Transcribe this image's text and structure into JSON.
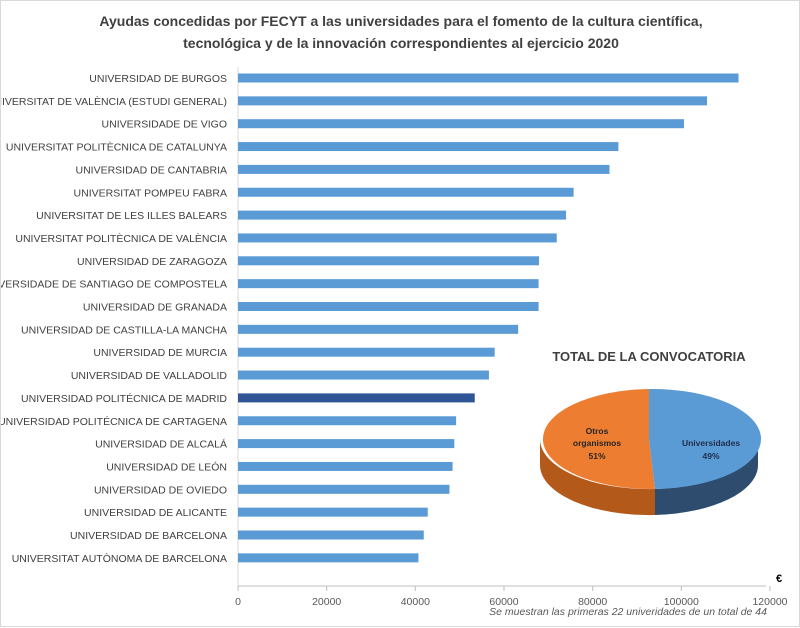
{
  "chart_data": [
    {
      "type": "bar",
      "orientation": "horizontal",
      "title": [
        "Ayudas concedidas por FECYT a las universidades para el fomento de la cultura científica,",
        "tecnológica y de la innovación  correspondientes al ejercicio 2020"
      ],
      "categories": [
        "UNIVERSIDAD DE BURGOS",
        "UNIVERSITAT DE VALÈNCIA (ESTUDI GENERAL)",
        "UNIVERSIDADE DE VIGO",
        "UNIVERSITAT POLITÈCNICA DE CATALUNYA",
        "UNIVERSIDAD DE CANTABRIA",
        "UNIVERSITAT POMPEU FABRA",
        "UNIVERSITAT DE LES ILLES BALEARS",
        "UNIVERSITAT POLITÈCNICA DE VALÈNCIA",
        "UNIVERSIDAD DE ZARAGOZA",
        "UNIVERSIDADE DE SANTIAGO DE COMPOSTELA",
        "UNIVERSIDAD DE GRANADA",
        "UNIVERSIDAD DE CASTILLA-LA MANCHA",
        "UNIVERSIDAD DE MURCIA",
        "UNIVERSIDAD DE VALLADOLID",
        "UNIVERSIDAD POLITÉCNICA DE MADRID",
        "UNIVERSIDAD POLITÉCNICA DE CARTAGENA",
        "UNIVERSIDAD DE ALCALÁ",
        "UNIVERSIDAD DE LEÓN",
        "UNIVERSIDAD DE OVIEDO",
        "UNIVERSIDAD DE ALICANTE",
        "UNIVERSIDAD DE BARCELONA",
        "UNIVERSITAT AUTÒNOMA DE BARCELONA"
      ],
      "values": [
        112900,
        105800,
        100600,
        85800,
        83800,
        75700,
        74000,
        71900,
        67900,
        67800,
        67800,
        63200,
        57900,
        56600,
        53400,
        49200,
        48800,
        48400,
        47700,
        42800,
        41900,
        40700
      ],
      "highlight_index": 14,
      "colors": {
        "bar": "#5b9bd5",
        "highlight": "#2f5597"
      },
      "xlim": [
        0,
        120000
      ],
      "xticks": [
        "0",
        "20000",
        "40000",
        "60000",
        "80000",
        "100000",
        "120000"
      ],
      "xunit": "€",
      "grid": false
    },
    {
      "type": "pie",
      "title": "TOTAL DE LA CONVOCATORIA",
      "style": "3d",
      "slices": [
        {
          "label": "Universidades",
          "value": 49,
          "pct_label": "49%",
          "color": "#5b9bd5"
        },
        {
          "label": "Otros organismos",
          "label_lines": [
            "Otros",
            "organismos"
          ],
          "value": 51,
          "pct_label": "51%",
          "color": "#ed7d31"
        }
      ]
    }
  ],
  "note": "Se muestran  las primeras  22 univeridades de un total de 44"
}
